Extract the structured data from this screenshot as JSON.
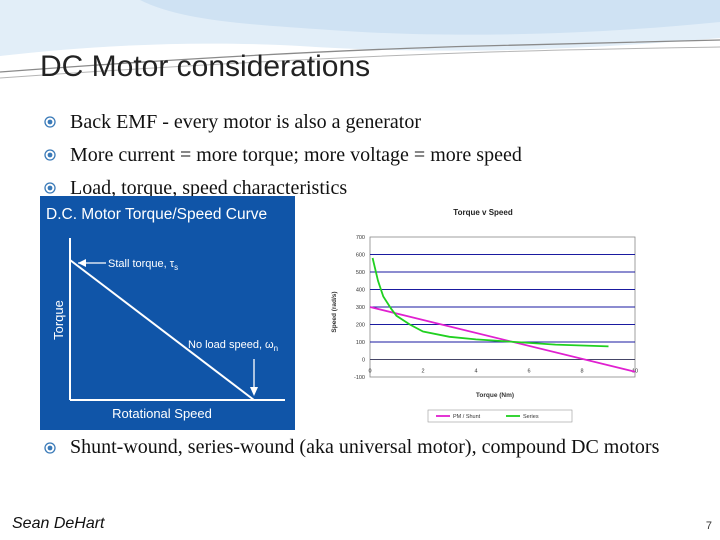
{
  "slide": {
    "title": "DC Motor considerations",
    "bullets": [
      "Back EMF - every motor is also a generator",
      "More current = more torque; more voltage = more speed",
      "Load, torque, speed characteristics"
    ],
    "bullets_lower": [
      "Shunt-wound, series-wound (aka universal motor), compound DC motors"
    ],
    "footer": {
      "author": "Sean DeHart",
      "page_number": "7"
    },
    "bullet_icon": "circle-dot-icon",
    "colors": {
      "left_figure_bg": "#0f4fa0",
      "shunt_line": "#e020d0",
      "series_line": "#20d020"
    }
  },
  "left_figure": {
    "title": "D.C. Motor Torque/Speed Curve",
    "ylabel": "Torque",
    "xlabel": "Rotational Speed",
    "stall_label": "Stall torque, τ",
    "stall_sub": "s",
    "noload_label": "No load speed, ω",
    "noload_sub": "n"
  },
  "chart_data": {
    "type": "line",
    "title": "Torque v Speed",
    "xlabel": "Torque (Nm)",
    "ylabel": "Speed (rad/s)",
    "xlim": [
      0,
      10
    ],
    "ylim": [
      -100,
      700
    ],
    "x_ticks": [
      "0",
      "2",
      "4",
      "6",
      "8",
      "10"
    ],
    "y_ticks": [
      "700",
      "600",
      "500",
      "400",
      "300",
      "200",
      "100",
      "0",
      "-100"
    ],
    "grid": true,
    "legend_position": "bottom",
    "series": [
      {
        "name": "PM / Shunt",
        "color": "#e020d0",
        "x": [
          0,
          10
        ],
        "y": [
          300,
          -70
        ]
      },
      {
        "name": "Series",
        "color": "#20d020",
        "x": [
          0.1,
          0.3,
          0.5,
          0.8,
          1.0,
          1.5,
          2,
          3,
          4,
          5,
          6,
          7,
          8,
          9
        ],
        "y": [
          580,
          450,
          360,
          290,
          250,
          200,
          160,
          130,
          115,
          105,
          95,
          85,
          80,
          75
        ]
      }
    ]
  }
}
